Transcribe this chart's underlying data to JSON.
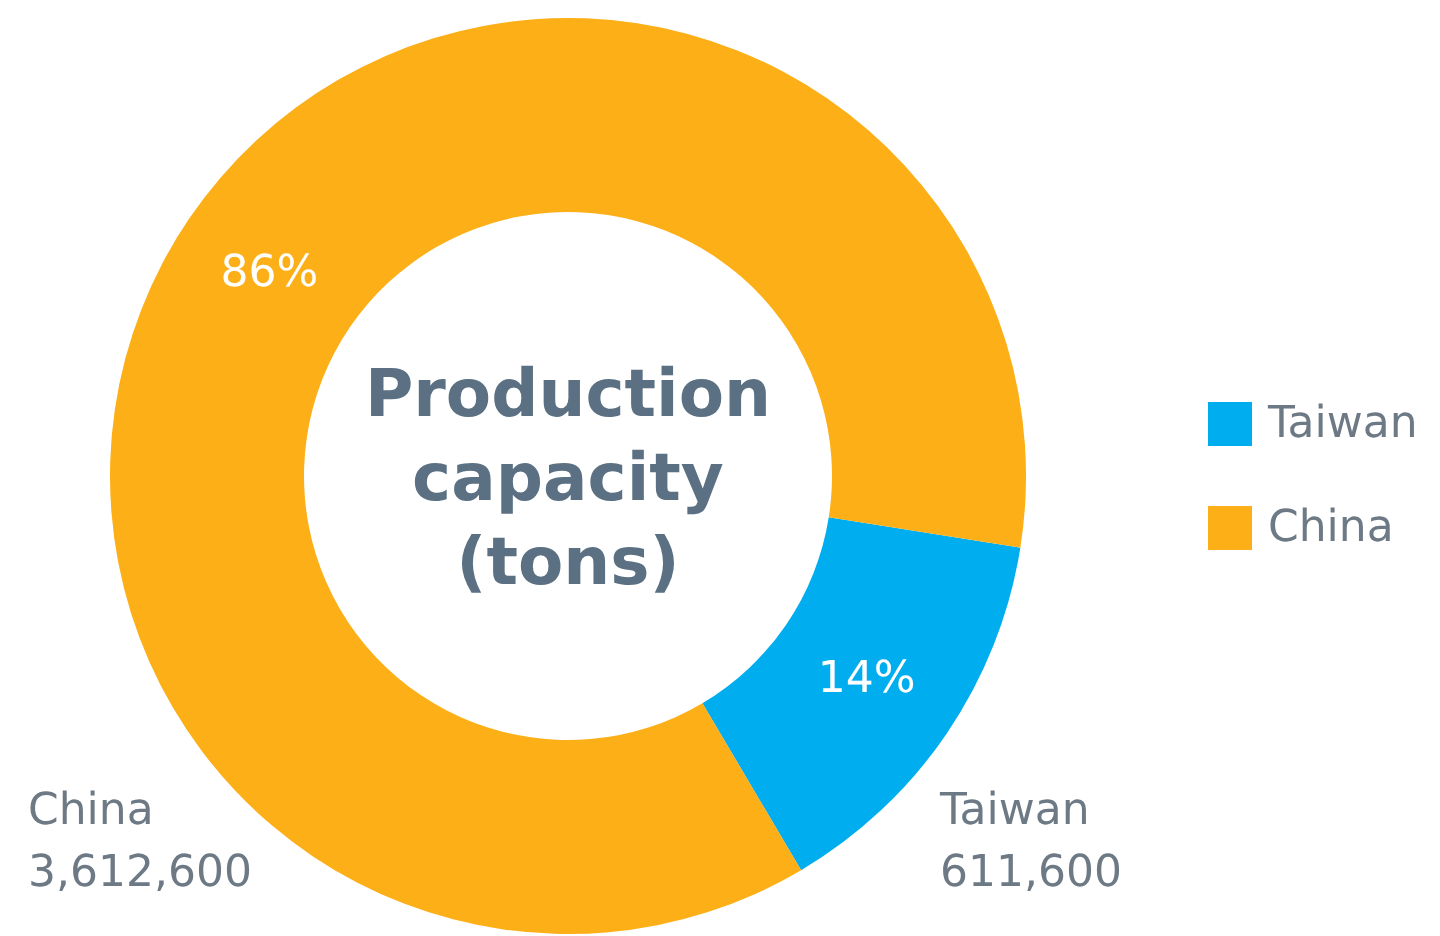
{
  "chart_data": {
    "type": "donut",
    "title": "Production capacity (tons)",
    "categories": [
      "Taiwan",
      "China"
    ],
    "values": [
      14,
      86
    ],
    "colors": [
      "#00aeef",
      "#fcaf17"
    ],
    "value_labels": [
      "14%",
      "86%"
    ],
    "annotations": [
      "Taiwan\n611,600",
      "China\n3,612,600"
    ],
    "legend": "right"
  }
}
